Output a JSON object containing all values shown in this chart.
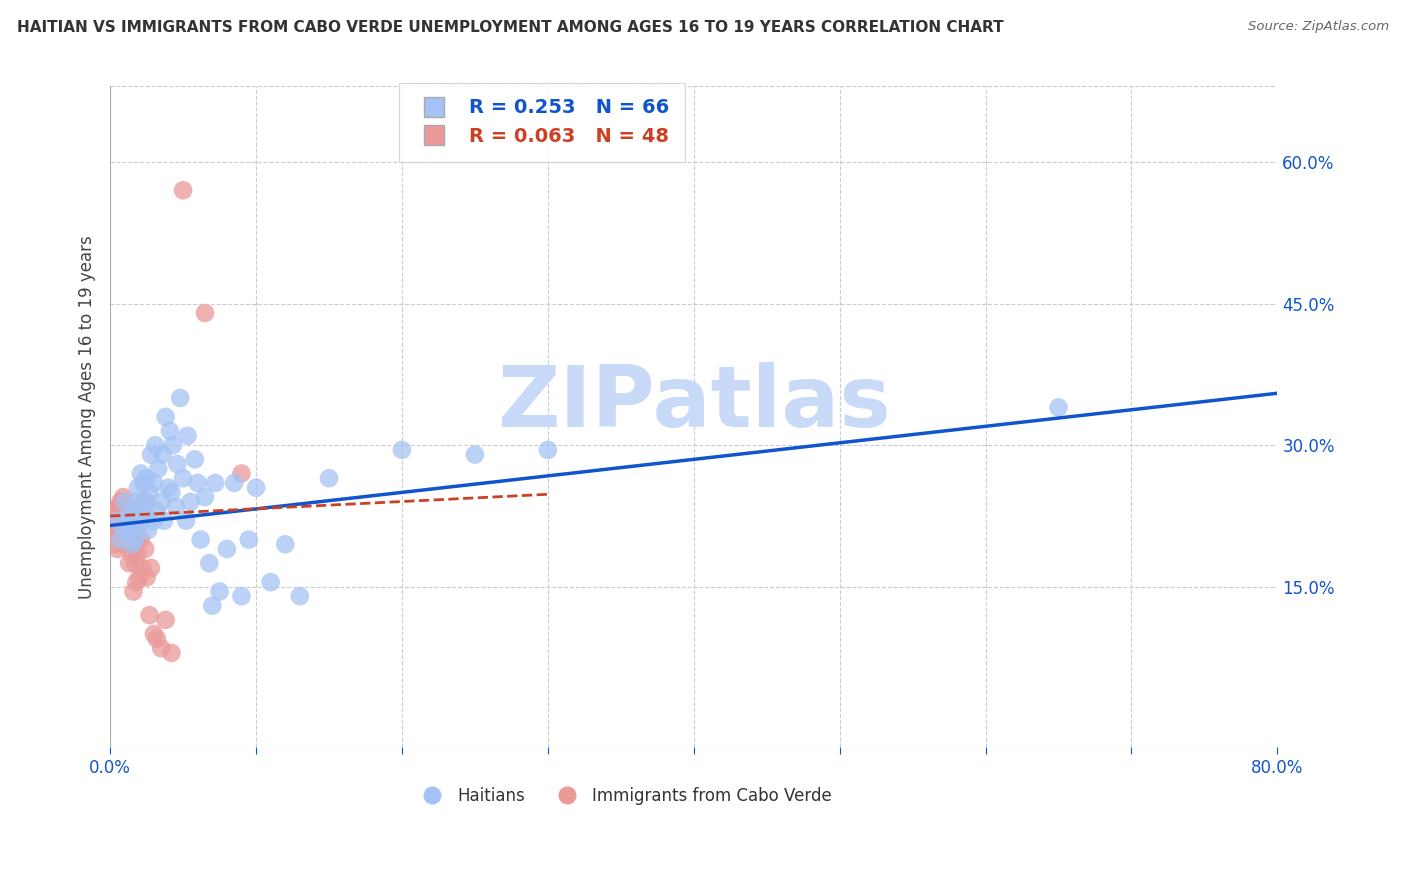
{
  "title": "HAITIAN VS IMMIGRANTS FROM CABO VERDE UNEMPLOYMENT AMONG AGES 16 TO 19 YEARS CORRELATION CHART",
  "source": "Source: ZipAtlas.com",
  "ylabel": "Unemployment Among Ages 16 to 19 years",
  "xlim": [
    0.0,
    0.8
  ],
  "ylim": [
    -0.02,
    0.68
  ],
  "xticks": [
    0.0,
    0.1,
    0.2,
    0.3,
    0.4,
    0.5,
    0.6,
    0.7,
    0.8
  ],
  "yticks_right": [
    0.15,
    0.3,
    0.45,
    0.6
  ],
  "haitian_R": 0.253,
  "haitian_N": 66,
  "cabo_verde_R": 0.063,
  "cabo_verde_N": 48,
  "blue_color": "#a4c2f4",
  "pink_color": "#ea9999",
  "blue_line_color": "#1155cc",
  "pink_line_color": "#cc4125",
  "watermark": "ZIPatlas",
  "watermark_color": "#c9daf8",
  "background_color": "#ffffff",
  "haitian_x": [
    0.005,
    0.007,
    0.01,
    0.01,
    0.012,
    0.013,
    0.014,
    0.015,
    0.015,
    0.016,
    0.017,
    0.018,
    0.018,
    0.019,
    0.02,
    0.02,
    0.021,
    0.022,
    0.023,
    0.024,
    0.025,
    0.025,
    0.026,
    0.027,
    0.028,
    0.03,
    0.03,
    0.031,
    0.032,
    0.033,
    0.035,
    0.036,
    0.037,
    0.038,
    0.04,
    0.041,
    0.042,
    0.043,
    0.045,
    0.046,
    0.048,
    0.05,
    0.052,
    0.053,
    0.055,
    0.058,
    0.06,
    0.062,
    0.065,
    0.068,
    0.07,
    0.072,
    0.075,
    0.08,
    0.085,
    0.09,
    0.095,
    0.1,
    0.11,
    0.12,
    0.13,
    0.15,
    0.2,
    0.25,
    0.3,
    0.65
  ],
  "haitian_y": [
    0.22,
    0.2,
    0.21,
    0.24,
    0.22,
    0.21,
    0.23,
    0.195,
    0.215,
    0.225,
    0.2,
    0.22,
    0.24,
    0.255,
    0.215,
    0.235,
    0.27,
    0.225,
    0.26,
    0.23,
    0.24,
    0.265,
    0.21,
    0.25,
    0.29,
    0.22,
    0.26,
    0.3,
    0.23,
    0.275,
    0.24,
    0.29,
    0.22,
    0.33,
    0.255,
    0.315,
    0.25,
    0.3,
    0.235,
    0.28,
    0.35,
    0.265,
    0.22,
    0.31,
    0.24,
    0.285,
    0.26,
    0.2,
    0.245,
    0.175,
    0.13,
    0.26,
    0.145,
    0.19,
    0.26,
    0.14,
    0.2,
    0.255,
    0.155,
    0.195,
    0.14,
    0.265,
    0.295,
    0.29,
    0.295,
    0.34
  ],
  "cabo_x": [
    0.002,
    0.003,
    0.003,
    0.004,
    0.004,
    0.005,
    0.005,
    0.006,
    0.006,
    0.007,
    0.007,
    0.008,
    0.008,
    0.009,
    0.009,
    0.01,
    0.01,
    0.011,
    0.011,
    0.012,
    0.012,
    0.013,
    0.013,
    0.014,
    0.015,
    0.015,
    0.016,
    0.016,
    0.017,
    0.018,
    0.018,
    0.019,
    0.02,
    0.021,
    0.022,
    0.023,
    0.024,
    0.025,
    0.027,
    0.028,
    0.03,
    0.032,
    0.035,
    0.038,
    0.042,
    0.05,
    0.065,
    0.09
  ],
  "cabo_y": [
    0.215,
    0.195,
    0.225,
    0.21,
    0.23,
    0.19,
    0.22,
    0.205,
    0.235,
    0.215,
    0.24,
    0.2,
    0.225,
    0.195,
    0.245,
    0.21,
    0.23,
    0.2,
    0.22,
    0.195,
    0.215,
    0.175,
    0.205,
    0.23,
    0.185,
    0.21,
    0.145,
    0.195,
    0.175,
    0.2,
    0.155,
    0.185,
    0.16,
    0.2,
    0.17,
    0.24,
    0.19,
    0.16,
    0.12,
    0.17,
    0.1,
    0.095,
    0.085,
    0.115,
    0.08,
    0.57,
    0.44,
    0.27
  ],
  "blue_line_x": [
    0.0,
    0.8
  ],
  "blue_line_y": [
    0.215,
    0.355
  ],
  "pink_line_x": [
    0.0,
    0.3
  ],
  "pink_line_y": [
    0.225,
    0.248
  ]
}
